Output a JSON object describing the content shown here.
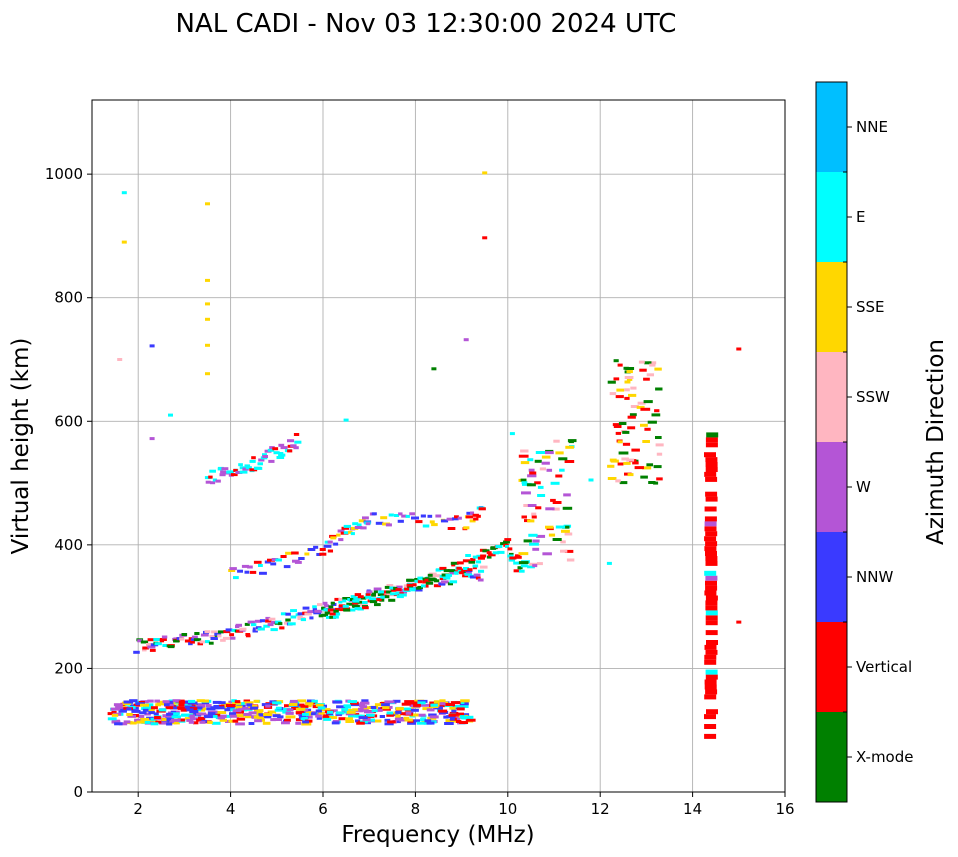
{
  "chart_data": {
    "type": "scatter",
    "title": "NAL CADI - Nov 03 12:30:00 2024 UTC",
    "xlabel": "Frequency (MHz)",
    "ylabel": "Virtual height (km)",
    "xlim": [
      1,
      16
    ],
    "ylim": [
      0,
      1120
    ],
    "xticks": [
      2,
      4,
      6,
      8,
      10,
      12,
      14,
      16
    ],
    "yticks": [
      0,
      200,
      400,
      600,
      800,
      1000
    ],
    "grid": true,
    "colorbar": {
      "label": "Azimuth Direction",
      "categories": [
        {
          "name": "X-mode",
          "color": "#008000"
        },
        {
          "name": "Vertical",
          "color": "#ff0000"
        },
        {
          "name": "NNW",
          "color": "#3a3aff"
        },
        {
          "name": "W",
          "color": "#b455d6"
        },
        {
          "name": "SSW",
          "color": "#ffb6c1"
        },
        {
          "name": "SSE",
          "color": "#ffd700"
        },
        {
          "name": "E",
          "color": "#00ffff"
        },
        {
          "name": "NNE",
          "color": "#00bfff"
        }
      ]
    },
    "echo_traces": [
      {
        "name": "E-region echoes",
        "fmin": 1.4,
        "fmax": 9.2,
        "h_low": 110,
        "h_high": 148,
        "directions": [
          "NNW",
          "W",
          "Vertical",
          "E",
          "SSE"
        ]
      },
      {
        "name": "F-region O-mode trace",
        "points": [
          [
            2.0,
            235
          ],
          [
            2.5,
            240
          ],
          [
            3.0,
            245
          ],
          [
            3.5,
            250
          ],
          [
            4.0,
            258
          ],
          [
            4.5,
            265
          ],
          [
            5.0,
            275
          ],
          [
            5.5,
            285
          ],
          [
            6.0,
            295
          ],
          [
            6.5,
            305
          ],
          [
            7.0,
            315
          ],
          [
            7.5,
            325
          ],
          [
            8.0,
            335
          ],
          [
            8.5,
            345
          ],
          [
            9.0,
            350
          ],
          [
            9.5,
            355
          ]
        ],
        "directions": [
          "Vertical",
          "E",
          "NNW",
          "W",
          "X-mode",
          "SSW"
        ]
      },
      {
        "name": "F-region X-mode trace",
        "points": [
          [
            6.0,
            285
          ],
          [
            6.5,
            300
          ],
          [
            7.0,
            310
          ],
          [
            7.5,
            322
          ],
          [
            8.0,
            335
          ],
          [
            8.5,
            350
          ],
          [
            9.0,
            365
          ],
          [
            9.5,
            385
          ],
          [
            10.0,
            400
          ],
          [
            10.3,
            360
          ]
        ],
        "directions": [
          "X-mode",
          "Vertical",
          "E"
        ]
      },
      {
        "name": "F-region upper branch",
        "points": [
          [
            4.0,
            350
          ],
          [
            5.0,
            370
          ],
          [
            6.0,
            390
          ],
          [
            6.5,
            420
          ],
          [
            7.0,
            440
          ],
          [
            8.0,
            440
          ],
          [
            9.0,
            435
          ],
          [
            9.5,
            460
          ]
        ],
        "directions": [
          "SSE",
          "W",
          "E",
          "Vertical",
          "NNW"
        ]
      },
      {
        "name": "Multi-hop echoes",
        "points": [
          [
            3.5,
            505
          ],
          [
            4.0,
            520
          ],
          [
            4.5,
            530
          ],
          [
            5.0,
            550
          ],
          [
            5.5,
            570
          ]
        ],
        "directions": [
          "Vertical",
          "E",
          "W"
        ]
      },
      {
        "name": "Spread echoes near 11 MHz",
        "fmin": 10.3,
        "fmax": 11.4,
        "h_low": 360,
        "h_high": 570,
        "directions": [
          "X-mode",
          "Vertical",
          "SSE",
          "SSW",
          "E",
          "W"
        ]
      },
      {
        "name": "High-frequency echoes near 12-13 MHz",
        "fmin": 12.2,
        "fmax": 13.3,
        "h_low": 500,
        "h_high": 700,
        "directions": [
          "X-mode",
          "Vertical",
          "SSW",
          "SSE"
        ]
      },
      {
        "name": "Column near 14.4 MHz",
        "freq": 14.4,
        "h_low": 90,
        "h_high": 590,
        "directions": [
          "Vertical",
          "X-mode",
          "W",
          "E"
        ]
      },
      {
        "name": "Isolated echoes",
        "points": [
          [
            1.7,
            970,
            "E"
          ],
          [
            1.7,
            890,
            "SSE"
          ],
          [
            1.6,
            700,
            "SSW"
          ],
          [
            2.3,
            722,
            "NNW"
          ],
          [
            3.5,
            952,
            "SSE"
          ],
          [
            3.5,
            828,
            "SSE"
          ],
          [
            3.5,
            790,
            "SSE"
          ],
          [
            3.5,
            765,
            "SSE"
          ],
          [
            3.5,
            723,
            "SSE"
          ],
          [
            3.5,
            677,
            "SSE"
          ],
          [
            9.5,
            1002,
            "SSE"
          ],
          [
            9.5,
            897,
            "Vertical"
          ],
          [
            9.1,
            732,
            "W"
          ],
          [
            8.4,
            685,
            "X-mode"
          ],
          [
            15.0,
            717,
            "Vertical"
          ],
          [
            15.0,
            275,
            "Vertical"
          ],
          [
            2.7,
            610,
            "E"
          ],
          [
            6.5,
            602,
            "E"
          ],
          [
            10.1,
            580,
            "E"
          ],
          [
            11.8,
            505,
            "E"
          ],
          [
            12.2,
            370,
            "E"
          ],
          [
            13.2,
            500,
            "X-mode"
          ],
          [
            2.3,
            572,
            "W"
          ]
        ]
      }
    ]
  }
}
